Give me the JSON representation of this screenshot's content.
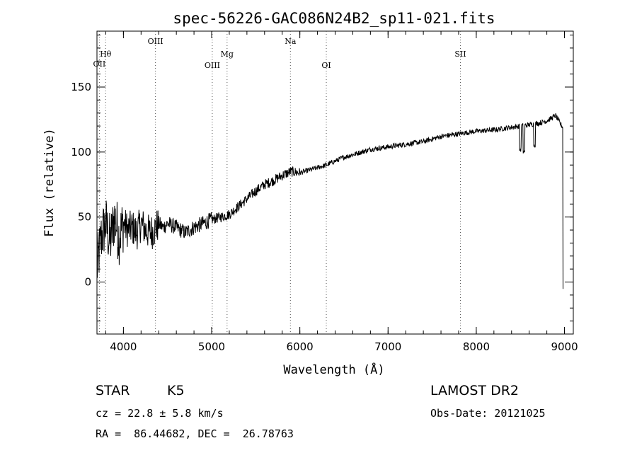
{
  "chart_data": {
    "type": "line",
    "title": "spec-56226-GAC086N24B2_sp11-021.fits",
    "xlabel": "Wavelength (Å)",
    "ylabel": "Flux (relative)",
    "xlim": [
      3700,
      9100
    ],
    "ylim": [
      -40,
      193
    ],
    "xticks": [
      4000,
      5000,
      6000,
      7000,
      8000,
      9000
    ],
    "yticks": [
      0,
      50,
      100,
      150
    ],
    "grid": false,
    "line_color": "#000000",
    "marker_color": "#555555",
    "series": [
      {
        "x": [
          3700,
          3750,
          3800,
          3850,
          3900,
          3950,
          4000,
          4050,
          4100,
          4150,
          4200,
          4250,
          4300,
          4350,
          4400,
          4450,
          4500,
          4600,
          4700,
          4800,
          4900,
          5000,
          5100,
          5200,
          5300,
          5400,
          5500,
          5600,
          5700,
          5800,
          5900,
          6000,
          6100,
          6200,
          6300,
          6400,
          6500,
          6600,
          6700,
          6800,
          6900,
          7000,
          7200,
          7400,
          7600,
          7800,
          8000,
          8200,
          8400,
          8500,
          8600,
          8700,
          8800,
          8900,
          8950,
          8990
        ],
        "y": [
          10,
          35,
          45,
          30,
          50,
          35,
          45,
          40,
          42,
          38,
          45,
          40,
          38,
          40,
          45,
          42,
          45,
          42,
          38,
          42,
          45,
          48,
          50,
          52,
          58,
          64,
          70,
          75,
          78,
          82,
          85,
          84,
          86,
          88,
          90,
          93,
          96,
          98,
          100,
          102,
          103,
          104,
          106,
          108,
          112,
          114,
          116,
          117,
          119,
          120,
          121,
          122,
          124,
          128,
          122,
          118
        ]
      }
    ],
    "line_markers": [
      {
        "label": "OII",
        "x": 3727
      },
      {
        "label": "Hθ",
        "x": 3798
      },
      {
        "label": "OIII",
        "x": 4363
      },
      {
        "label": "OIII",
        "x": 5007
      },
      {
        "label": "Mg",
        "x": 5175
      },
      {
        "label": "Na",
        "x": 5893
      },
      {
        "label": "OI",
        "x": 6300
      },
      {
        "label": "SII",
        "x": 7820
      }
    ]
  },
  "info": {
    "class": "STAR",
    "subclass": "K5",
    "survey": "LAMOST DR2",
    "cz": "cz = 22.8 ± 5.8 km/s",
    "obs_date": "Obs-Date: 20121025",
    "coords": "RA =  86.44682, DEC =  26.78763"
  }
}
